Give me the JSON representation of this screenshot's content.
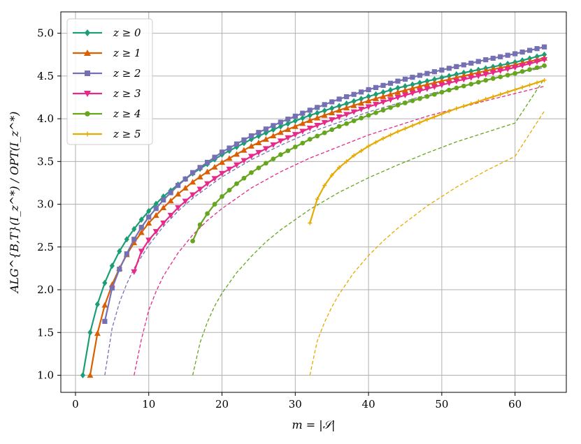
{
  "chart_data": {
    "type": "line",
    "xlabel": "m = |𝒮|",
    "ylabel": "ALG^{B,T}(I_z^*) / OPT(I_z^*)",
    "xlim": [
      -2,
      67
    ],
    "ylim": [
      0.8,
      5.25
    ],
    "xticks": [
      0,
      10,
      20,
      30,
      40,
      50,
      60
    ],
    "yticks": [
      1.0,
      1.5,
      2.0,
      2.5,
      3.0,
      3.5,
      4.0,
      4.5,
      5.0
    ],
    "grid": true,
    "legend_position": "top-left",
    "series": [
      {
        "name": "z ≥ 0",
        "color": "#1b9e77",
        "marker": "diamond",
        "x_start": 1,
        "x_end": 64,
        "anchors": [
          [
            1,
            1.0
          ],
          [
            2,
            1.5
          ],
          [
            3,
            1.83
          ],
          [
            4,
            2.08
          ],
          [
            5,
            2.28
          ],
          [
            6,
            2.45
          ],
          [
            7,
            2.59
          ],
          [
            8,
            2.71
          ],
          [
            9,
            2.82
          ],
          [
            10,
            2.92
          ],
          [
            12,
            3.09
          ],
          [
            14,
            3.23
          ],
          [
            16,
            3.36
          ],
          [
            18,
            3.47
          ],
          [
            20,
            3.58
          ],
          [
            24,
            3.76
          ],
          [
            28,
            3.91
          ],
          [
            32,
            4.04
          ],
          [
            36,
            4.15
          ],
          [
            40,
            4.26
          ],
          [
            44,
            4.36
          ],
          [
            48,
            4.44
          ],
          [
            52,
            4.52
          ],
          [
            56,
            4.59
          ],
          [
            60,
            4.66
          ],
          [
            64,
            4.75
          ]
        ]
      },
      {
        "name": "z ≥ 1",
        "color": "#d95f02",
        "marker": "triangle-up",
        "x_start": 2,
        "x_end": 64,
        "anchors": [
          [
            2,
            1.0
          ],
          [
            3,
            1.49
          ],
          [
            4,
            1.82
          ],
          [
            5,
            2.06
          ],
          [
            6,
            2.25
          ],
          [
            7,
            2.41
          ],
          [
            8,
            2.55
          ],
          [
            9,
            2.67
          ],
          [
            10,
            2.78
          ],
          [
            12,
            2.96
          ],
          [
            14,
            3.12
          ],
          [
            16,
            3.26
          ],
          [
            18,
            3.38
          ],
          [
            20,
            3.49
          ],
          [
            24,
            3.68
          ],
          [
            28,
            3.84
          ],
          [
            32,
            3.98
          ],
          [
            36,
            4.1
          ],
          [
            40,
            4.21
          ],
          [
            44,
            4.31
          ],
          [
            48,
            4.4
          ],
          [
            52,
            4.48
          ],
          [
            56,
            4.56
          ],
          [
            60,
            4.63
          ],
          [
            64,
            4.71
          ]
        ]
      },
      {
        "name": "z ≥ 2",
        "color": "#7570b3",
        "marker": "square",
        "x_start": 4,
        "x_end": 64,
        "anchors": [
          [
            4,
            1.63
          ],
          [
            5,
            2.02
          ],
          [
            6,
            2.24
          ],
          [
            7,
            2.42
          ],
          [
            8,
            2.59
          ],
          [
            9,
            2.73
          ],
          [
            10,
            2.85
          ],
          [
            12,
            3.05
          ],
          [
            14,
            3.22
          ],
          [
            16,
            3.37
          ],
          [
            18,
            3.49
          ],
          [
            20,
            3.61
          ],
          [
            24,
            3.8
          ],
          [
            28,
            3.96
          ],
          [
            32,
            4.1
          ],
          [
            36,
            4.23
          ],
          [
            40,
            4.34
          ],
          [
            44,
            4.44
          ],
          [
            48,
            4.53
          ],
          [
            52,
            4.61
          ],
          [
            56,
            4.69
          ],
          [
            60,
            4.76
          ],
          [
            64,
            4.84
          ]
        ]
      },
      {
        "name": "z ≥ 3",
        "color": "#e7298a",
        "marker": "triangle-down",
        "x_start": 8,
        "x_end": 64,
        "anchors": [
          [
            8,
            2.21
          ],
          [
            9,
            2.45
          ],
          [
            10,
            2.58
          ],
          [
            12,
            2.78
          ],
          [
            14,
            2.96
          ],
          [
            16,
            3.11
          ],
          [
            18,
            3.24
          ],
          [
            20,
            3.36
          ],
          [
            24,
            3.56
          ],
          [
            28,
            3.74
          ],
          [
            32,
            3.89
          ],
          [
            36,
            4.02
          ],
          [
            40,
            4.14
          ],
          [
            44,
            4.25
          ],
          [
            48,
            4.35
          ],
          [
            52,
            4.44
          ],
          [
            56,
            4.52
          ],
          [
            60,
            4.6
          ],
          [
            64,
            4.69
          ]
        ]
      },
      {
        "name": "z ≥ 4",
        "color": "#66a61e",
        "marker": "circle",
        "x_start": 16,
        "x_end": 64,
        "anchors": [
          [
            16,
            2.57
          ],
          [
            17,
            2.76
          ],
          [
            18,
            2.89
          ],
          [
            19,
            3.0
          ],
          [
            20,
            3.09
          ],
          [
            22,
            3.24
          ],
          [
            24,
            3.37
          ],
          [
            26,
            3.48
          ],
          [
            28,
            3.58
          ],
          [
            30,
            3.67
          ],
          [
            32,
            3.76
          ],
          [
            36,
            3.91
          ],
          [
            40,
            4.04
          ],
          [
            44,
            4.16
          ],
          [
            48,
            4.26
          ],
          [
            52,
            4.36
          ],
          [
            56,
            4.45
          ],
          [
            60,
            4.53
          ],
          [
            64,
            4.62
          ]
        ]
      },
      {
        "name": "z ≥ 5",
        "color": "#e6ab02",
        "marker": "plus",
        "x_start": 32,
        "x_end": 64,
        "anchors": [
          [
            32,
            2.78
          ],
          [
            33,
            3.06
          ],
          [
            34,
            3.22
          ],
          [
            35,
            3.34
          ],
          [
            36,
            3.43
          ],
          [
            38,
            3.57
          ],
          [
            40,
            3.68
          ],
          [
            42,
            3.77
          ],
          [
            44,
            3.85
          ],
          [
            48,
            3.99
          ],
          [
            52,
            4.12
          ],
          [
            56,
            4.23
          ],
          [
            60,
            4.34
          ],
          [
            64,
            4.45
          ]
        ]
      }
    ],
    "dashed_curves": [
      {
        "color": "#7570b3",
        "anchors": [
          [
            4,
            1.0
          ],
          [
            5,
            1.55
          ],
          [
            6,
            1.85
          ],
          [
            7,
            2.07
          ],
          [
            8,
            2.25
          ],
          [
            10,
            2.52
          ],
          [
            12,
            2.74
          ],
          [
            14,
            2.92
          ],
          [
            16,
            3.07
          ],
          [
            20,
            3.32
          ],
          [
            24,
            3.52
          ],
          [
            28,
            3.69
          ],
          [
            32,
            3.84
          ],
          [
            40,
            4.08
          ],
          [
            48,
            4.28
          ],
          [
            56,
            4.45
          ],
          [
            64,
            4.6
          ]
        ]
      },
      {
        "color": "#e7298a",
        "anchors": [
          [
            8,
            1.0
          ],
          [
            9,
            1.42
          ],
          [
            10,
            1.76
          ],
          [
            11,
            1.98
          ],
          [
            12,
            2.16
          ],
          [
            14,
            2.43
          ],
          [
            16,
            2.64
          ],
          [
            18,
            2.81
          ],
          [
            20,
            2.95
          ],
          [
            24,
            3.19
          ],
          [
            28,
            3.38
          ],
          [
            32,
            3.54
          ],
          [
            40,
            3.81
          ],
          [
            48,
            4.03
          ],
          [
            56,
            4.21
          ],
          [
            64,
            4.38
          ]
        ]
      },
      {
        "color": "#66a61e",
        "anchors": [
          [
            16,
            1.0
          ],
          [
            17,
            1.38
          ],
          [
            18,
            1.62
          ],
          [
            19,
            1.81
          ],
          [
            20,
            1.96
          ],
          [
            22,
            2.2
          ],
          [
            24,
            2.39
          ],
          [
            26,
            2.56
          ],
          [
            28,
            2.7
          ],
          [
            32,
            2.94
          ],
          [
            36,
            3.14
          ],
          [
            40,
            3.31
          ],
          [
            44,
            3.46
          ],
          [
            48,
            3.6
          ],
          [
            52,
            3.73
          ],
          [
            56,
            3.84
          ],
          [
            60,
            3.95
          ],
          [
            64,
            4.47
          ]
        ]
      },
      {
        "color": "#e6ab02",
        "anchors": [
          [
            32,
            1.0
          ],
          [
            33,
            1.4
          ],
          [
            34,
            1.62
          ],
          [
            35,
            1.8
          ],
          [
            36,
            1.95
          ],
          [
            38,
            2.2
          ],
          [
            40,
            2.4
          ],
          [
            42,
            2.57
          ],
          [
            44,
            2.72
          ],
          [
            48,
            2.98
          ],
          [
            52,
            3.2
          ],
          [
            56,
            3.39
          ],
          [
            60,
            3.56
          ],
          [
            64,
            4.09
          ]
        ]
      }
    ]
  }
}
